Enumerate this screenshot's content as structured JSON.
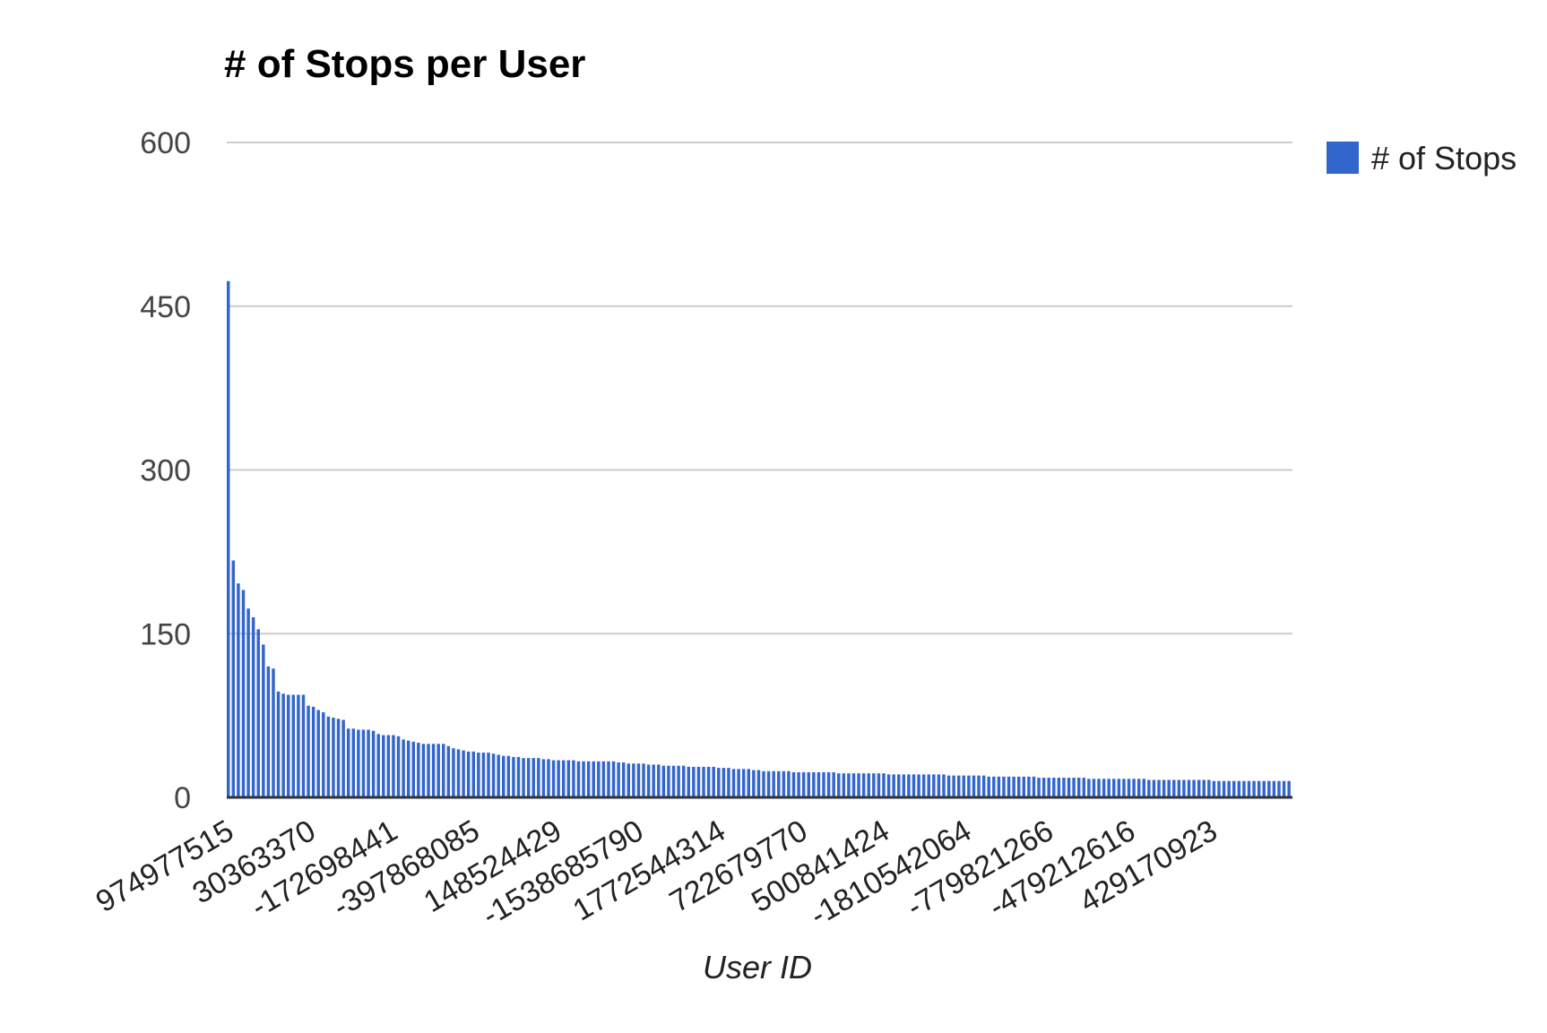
{
  "chart_data": {
    "type": "bar",
    "title": "# of Stops per User",
    "xlabel": "User ID",
    "ylabel": "",
    "ylim": [
      0,
      600
    ],
    "yticks": [
      0,
      150,
      300,
      450,
      600
    ],
    "grid": true,
    "legend_position": "right",
    "bar_color": "#3366cc",
    "shown_x_tick_labels": [
      "974977515",
      "30363370",
      "-172698441",
      "-397868085",
      "148524429",
      "-1538685790",
      "1772544314",
      "722679770",
      "500841424",
      "-1810542064",
      "-779821266",
      "-479212616",
      "429170923"
    ],
    "series": [
      {
        "name": "# of Stops",
        "values": [
          473,
          217,
          196,
          190,
          173,
          165,
          154,
          140,
          120,
          118,
          97,
          95,
          94,
          94,
          94,
          94,
          84,
          83,
          80,
          78,
          74,
          73,
          72,
          71,
          63,
          63,
          62,
          62,
          62,
          61,
          58,
          57,
          57,
          57,
          56,
          53,
          52,
          51,
          50,
          49,
          49,
          49,
          49,
          49,
          47,
          45,
          44,
          43,
          42,
          42,
          41,
          41,
          41,
          40,
          39,
          38,
          38,
          37,
          37,
          36,
          36,
          36,
          36,
          35,
          35,
          34,
          34,
          34,
          34,
          34,
          33,
          33,
          33,
          33,
          33,
          33,
          33,
          33,
          32,
          32,
          31,
          31,
          31,
          31,
          30,
          30,
          30,
          29,
          29,
          29,
          29,
          29,
          28,
          28,
          28,
          28,
          28,
          28,
          27,
          27,
          27,
          26,
          26,
          26,
          26,
          25,
          25,
          24,
          24,
          24,
          24,
          24,
          24,
          23,
          23,
          23,
          23,
          23,
          23,
          23,
          23,
          23,
          22,
          22,
          22,
          22,
          22,
          22,
          22,
          22,
          22,
          22,
          21,
          21,
          21,
          21,
          21,
          21,
          21,
          21,
          21,
          21,
          21,
          21,
          20,
          20,
          20,
          20,
          20,
          20,
          20,
          20,
          19,
          19,
          19,
          19,
          19,
          19,
          19,
          19,
          19,
          19,
          18,
          18,
          18,
          18,
          18,
          18,
          18,
          18,
          18,
          18,
          17,
          17,
          17,
          17,
          17,
          17,
          17,
          17,
          17,
          17,
          17,
          17,
          16,
          16,
          16,
          16,
          16,
          16,
          16,
          16,
          16,
          16,
          16,
          16,
          16,
          15,
          15,
          15,
          15,
          15,
          15,
          15,
          15,
          15,
          15,
          15,
          15,
          15,
          15,
          15,
          15
        ]
      }
    ]
  }
}
